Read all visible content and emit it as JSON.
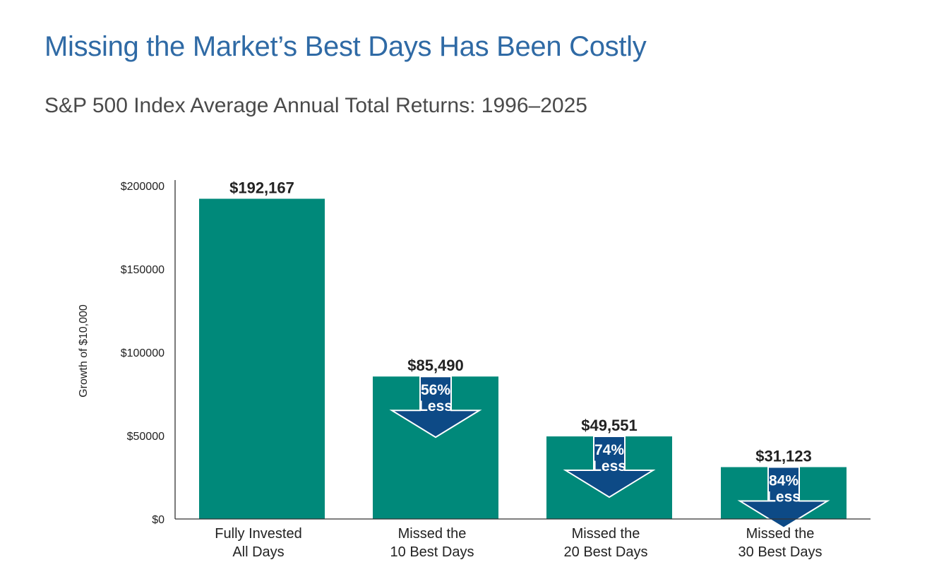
{
  "page": {
    "title": "Missing the Market’s Best Days Has Been Costly",
    "subtitle": "S&P 500 Index Average Annual Total Returns: 1996–2025"
  },
  "colors": {
    "title": "#2f6aa5",
    "subtitle": "#4a4a4a",
    "bar": "#00897a",
    "arrow": "#0d4a86",
    "arrow_outline": "#ffffff",
    "axis": "#333333",
    "text": "#222222"
  },
  "chart_data": {
    "type": "bar",
    "title": "Missing the Market’s Best Days Has Been Costly",
    "subtitle": "S&P 500 Index Average Annual Total Returns: 1996–2025",
    "xlabel": "",
    "ylabel": "Growth of $10,000",
    "ylim": [
      0,
      200000
    ],
    "yticks": [
      0,
      50000,
      100000,
      150000,
      200000
    ],
    "ytick_labels": [
      "$0",
      "$50000",
      "$100000",
      "$150000",
      "$200000"
    ],
    "grid": false,
    "categories": [
      [
        "Fully Invested",
        "All Days"
      ],
      [
        "Missed the",
        "10 Best Days"
      ],
      [
        "Missed the",
        "20 Best Days"
      ],
      [
        "Missed the",
        "30 Best Days"
      ]
    ],
    "values": [
      192167,
      85490,
      49551,
      31123
    ],
    "data_labels": [
      "$192,167",
      "$85,490",
      "$49,551",
      "$31,123"
    ],
    "annotations": [
      null,
      [
        "56%",
        "Less"
      ],
      [
        "74%",
        "Less"
      ],
      [
        "84%",
        "Less"
      ]
    ]
  }
}
